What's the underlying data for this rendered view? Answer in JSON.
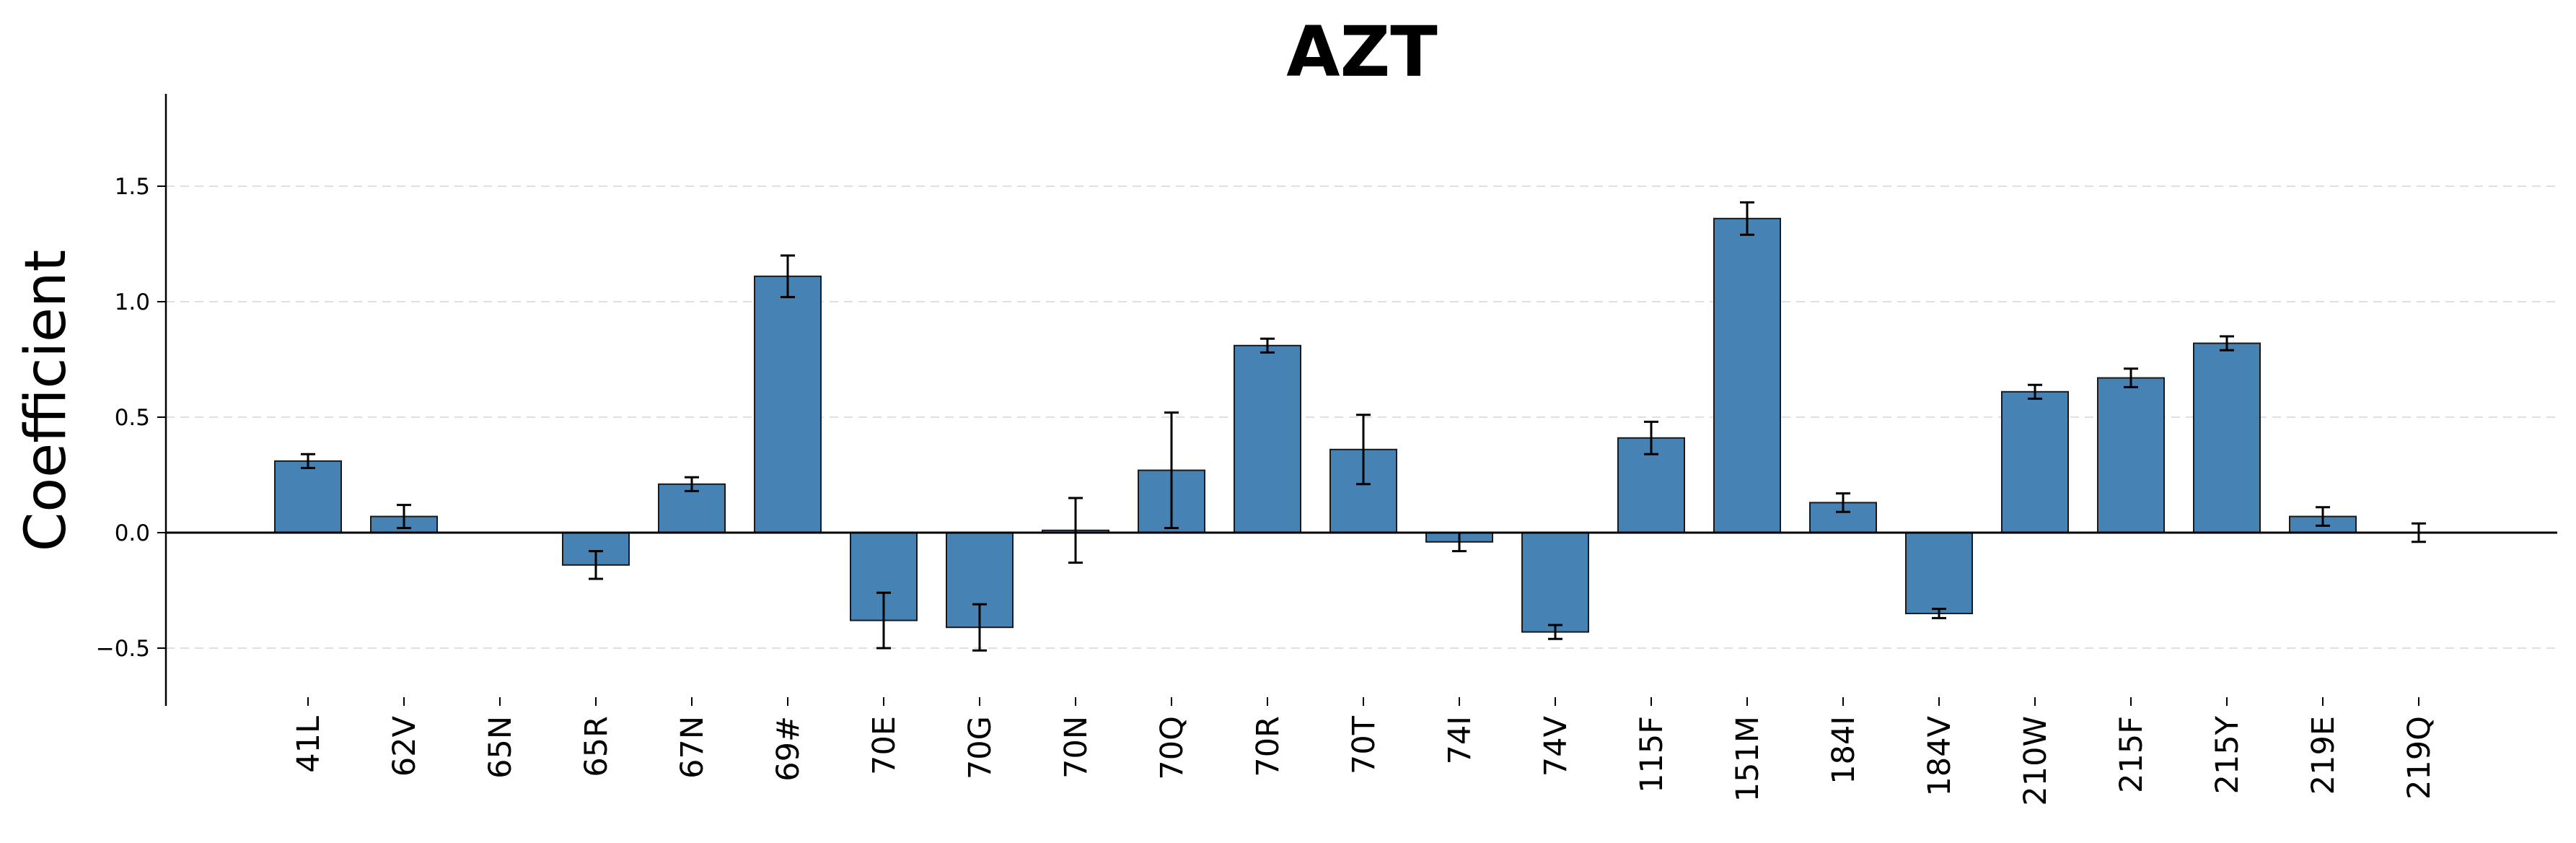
{
  "chart_data": {
    "type": "bar",
    "title": "AZT",
    "xlabel": "",
    "ylabel": "Coefficient",
    "categories": [
      "41L",
      "62V",
      "65N",
      "65R",
      "67N",
      "69#",
      "70E",
      "70G",
      "70N",
      "70Q",
      "70R",
      "70T",
      "74I",
      "74V",
      "115F",
      "151M",
      "184I",
      "184V",
      "210W",
      "215F",
      "215Y",
      "219E",
      "219Q"
    ],
    "values": [
      0.31,
      0.07,
      0.0,
      -0.14,
      0.21,
      1.11,
      -0.38,
      -0.41,
      0.01,
      0.27,
      0.81,
      0.36,
      -0.04,
      -0.43,
      0.41,
      1.36,
      0.13,
      -0.35,
      0.61,
      0.67,
      0.82,
      0.07,
      0.0
    ],
    "errors": [
      0.03,
      0.05,
      0.0,
      0.06,
      0.03,
      0.09,
      0.12,
      0.1,
      0.14,
      0.25,
      0.03,
      0.15,
      0.04,
      0.03,
      0.07,
      0.07,
      0.04,
      0.02,
      0.03,
      0.04,
      0.03,
      0.04,
      0.04
    ],
    "ylim": [
      -0.75,
      1.9
    ],
    "yticks": [
      -0.5,
      0.0,
      0.5,
      1.0,
      1.5
    ],
    "ytick_labels": [
      "−0.5",
      "0.0",
      "0.5",
      "1.0",
      "1.5"
    ],
    "grid": "horizontal-dashed",
    "legend": "none",
    "colors": {
      "bar_fill": "#4682b4",
      "bar_edge": "#1a1a1a",
      "error_bar": "#000000",
      "zero_line": "#000000",
      "grid": "#e0e0e0",
      "axis": "#000000"
    }
  }
}
